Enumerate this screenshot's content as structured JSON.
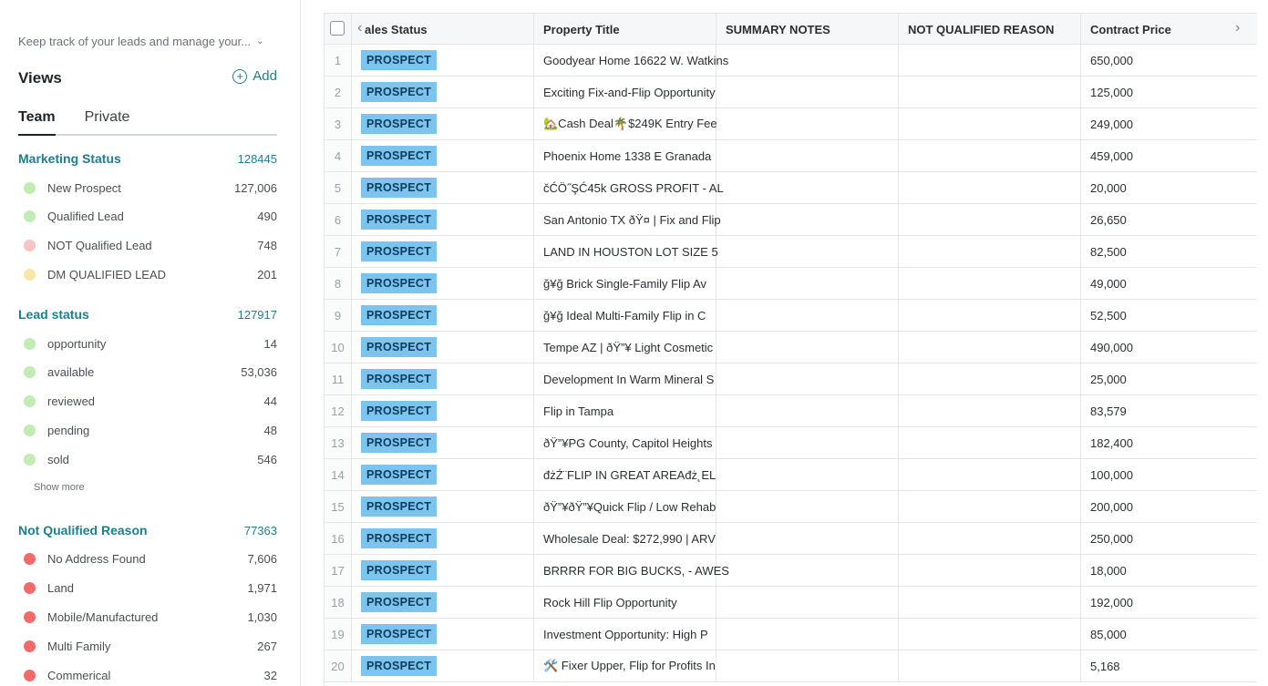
{
  "sidebar": {
    "description": "Keep track of your leads and manage your...",
    "views_title": "Views",
    "add_label": "Add",
    "tabs": [
      {
        "label": "Team"
      },
      {
        "label": "Private"
      }
    ],
    "marketing_status": {
      "title": "Marketing Status",
      "count": "128445",
      "items": [
        {
          "label": "New Prospect",
          "count": "127,006",
          "color": "#c3ebb4"
        },
        {
          "label": "Qualified Lead",
          "count": "490",
          "color": "#c3ebb4"
        },
        {
          "label": "NOT Qualified Lead",
          "count": "748",
          "color": "#f6c4c4"
        },
        {
          "label": "DM QUALIFIED LEAD",
          "count": "201",
          "color": "#f8e6a8"
        }
      ]
    },
    "lead_status": {
      "title": "Lead status",
      "count": "127917",
      "items": [
        {
          "label": "opportunity",
          "count": "14",
          "color": "#c3ebb4"
        },
        {
          "label": "available",
          "count": "53,036",
          "color": "#c3ebb4"
        },
        {
          "label": "reviewed",
          "count": "44",
          "color": "#c3ebb4"
        },
        {
          "label": "pending",
          "count": "48",
          "color": "#c3ebb4"
        },
        {
          "label": "sold",
          "count": "546",
          "color": "#c3ebb4"
        }
      ],
      "show_more": "Show more"
    },
    "not_qualified_reason": {
      "title": "Not Qualified Reason",
      "count": "77363",
      "items": [
        {
          "label": "No Address Found",
          "count": "7,606",
          "color": "#f26a6a"
        },
        {
          "label": "Land",
          "count": "1,971",
          "color": "#f26a6a"
        },
        {
          "label": "Mobile/Manufactured",
          "count": "1,030",
          "color": "#f26a6a"
        },
        {
          "label": "Multi Family",
          "count": "267",
          "color": "#f26a6a"
        },
        {
          "label": "Commerical",
          "count": "32",
          "color": "#f26a6a"
        }
      ]
    }
  },
  "table": {
    "columns": [
      "ales Status",
      "Property Title",
      "SUMMARY NOTES",
      "NOT QUALIFIED REASON",
      "Contract Price"
    ],
    "rows": [
      {
        "n": "1",
        "status": "PROSPECT",
        "title": "Goodyear Home 16622 W. Watkins",
        "notes": "",
        "reason": "",
        "price": "650,000"
      },
      {
        "n": "2",
        "status": "PROSPECT",
        "title": "Exciting Fix-and-Flip Opportunity",
        "notes": "",
        "reason": "",
        "price": "125,000"
      },
      {
        "n": "3",
        "status": "PROSPECT",
        "title": "🏡Cash Deal🌴$249K Entry Fee",
        "notes": "",
        "reason": "",
        "price": "249,000"
      },
      {
        "n": "4",
        "status": "PROSPECT",
        "title": "Phoenix Home 1338 E Granada",
        "notes": "",
        "reason": "",
        "price": "459,000"
      },
      {
        "n": "5",
        "status": "PROSPECT",
        "title": "čĆÖ˝ŞĆ45k GROSS PROFIT - AL",
        "notes": "",
        "reason": "",
        "price": "20,000"
      },
      {
        "n": "6",
        "status": "PROSPECT",
        "title": "San Antonio TX ðŸ¤ | Fix and Flip",
        "notes": "",
        "reason": "",
        "price": "26,650"
      },
      {
        "n": "7",
        "status": "PROSPECT",
        "title": "LAND IN HOUSTON LOT SIZE 5",
        "notes": "",
        "reason": "",
        "price": "82,500"
      },
      {
        "n": "8",
        "status": "PROSPECT",
        "title": "ğ¥ğ  Brick Single-Family Flip Av",
        "notes": "",
        "reason": "",
        "price": "49,000"
      },
      {
        "n": "9",
        "status": "PROSPECT",
        "title": "ğ¥ğ  Ideal Multi-Family Flip in C",
        "notes": "",
        "reason": "",
        "price": "52,500"
      },
      {
        "n": "10",
        "status": "PROSPECT",
        "title": "Tempe AZ | ðŸ”¥ Light Cosmetic",
        "notes": "",
        "reason": "",
        "price": "490,000"
      },
      {
        "n": "11",
        "status": "PROSPECT",
        "title": "Development In Warm Mineral S",
        "notes": "",
        "reason": "",
        "price": "25,000"
      },
      {
        "n": "12",
        "status": "PROSPECT",
        "title": "Flip in Tampa",
        "notes": "",
        "reason": "",
        "price": "83,579"
      },
      {
        "n": "13",
        "status": "PROSPECT",
        "title": "ðŸ”¥PG County, Capitol Heights",
        "notes": "",
        "reason": "",
        "price": "182,400"
      },
      {
        "n": "14",
        "status": "PROSPECT",
        "title": "đżŹ¨FLIP IN GREAT AREAđż˛EL",
        "notes": "",
        "reason": "",
        "price": "100,000"
      },
      {
        "n": "15",
        "status": "PROSPECT",
        "title": "ðŸ”¥ðŸ”¥Quick Flip / Low Rehab",
        "notes": "",
        "reason": "",
        "price": "200,000"
      },
      {
        "n": "16",
        "status": "PROSPECT",
        "title": "Wholesale Deal: $272,990 | ARV",
        "notes": "",
        "reason": "",
        "price": "250,000"
      },
      {
        "n": "17",
        "status": "PROSPECT",
        "title": "BRRRR FOR BIG BUCKS, - AWES",
        "notes": "",
        "reason": "",
        "price": "18,000"
      },
      {
        "n": "18",
        "status": "PROSPECT",
        "title": "Rock Hill Flip Opportunity",
        "notes": "",
        "reason": "",
        "price": "192,000"
      },
      {
        "n": "19",
        "status": "PROSPECT",
        "title": "Investment Opportunity: High P",
        "notes": "",
        "reason": "",
        "price": "85,000"
      },
      {
        "n": "20",
        "status": "PROSPECT",
        "title": "🛠️ Fixer Upper, Flip for Profits In",
        "notes": "",
        "reason": "",
        "price": "5,168"
      }
    ]
  },
  "icons": {
    "chevron_down": "chevron-down-icon",
    "plus_circle": "plus-circle-icon",
    "arrow_left": "chevron-left-icon",
    "arrow_right": "chevron-right-icon"
  }
}
